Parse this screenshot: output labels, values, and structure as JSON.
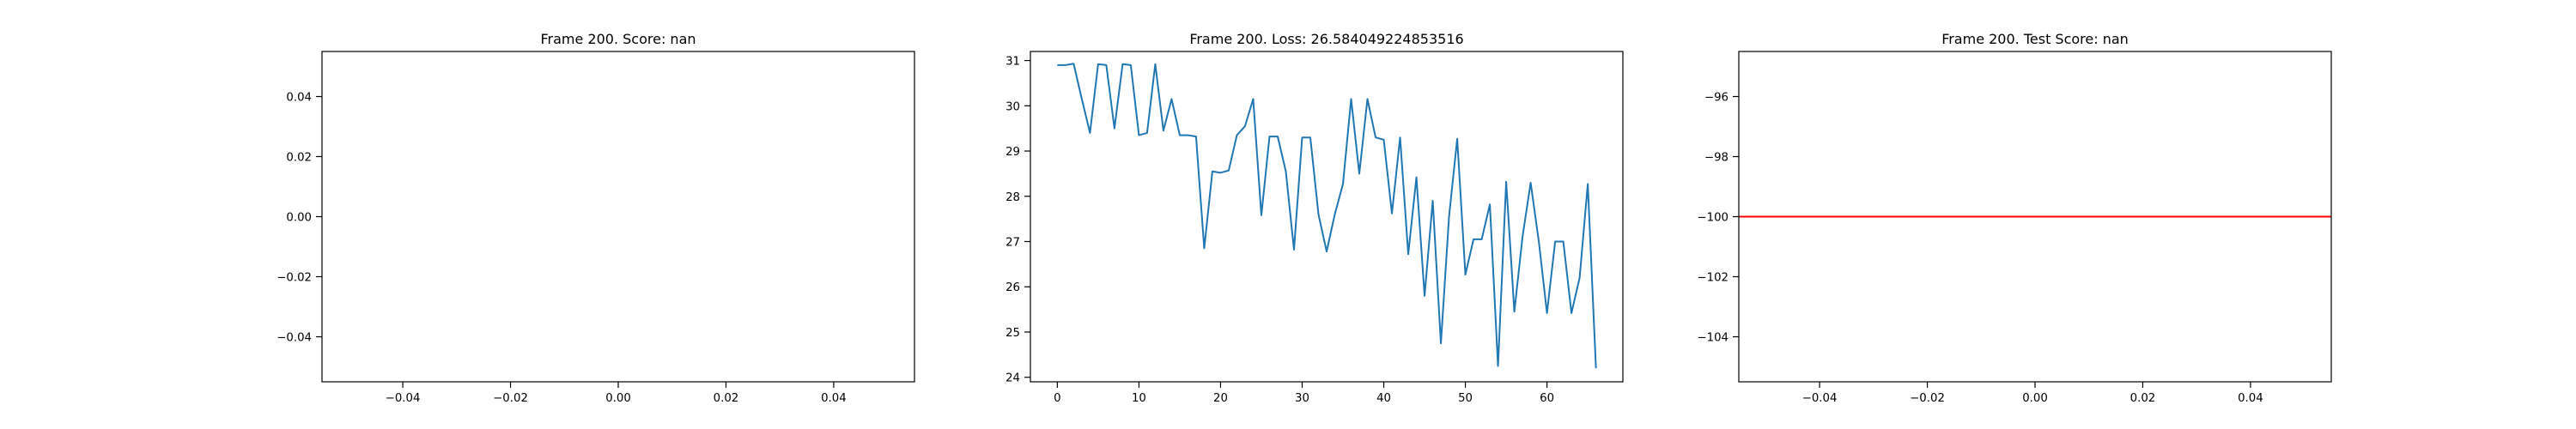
{
  "chart_data": [
    {
      "type": "line",
      "title": "Frame 200. Score: nan",
      "xlim": [
        -0.055,
        0.055
      ],
      "ylim": [
        -0.055,
        0.055
      ],
      "xticks": [
        -0.04,
        -0.02,
        0.0,
        0.02,
        0.04
      ],
      "xtick_labels": [
        "−0.04",
        "−0.02",
        "0.00",
        "0.02",
        "0.04"
      ],
      "yticks": [
        0.04,
        0.02,
        0.0,
        -0.02,
        -0.04
      ],
      "ytick_labels": [
        "0.04",
        "0.02",
        "0.00",
        "−0.02",
        "−0.04"
      ],
      "grid": false,
      "series": []
    },
    {
      "type": "line",
      "title": "Frame 200. Loss: 26.584049224853516",
      "xlim": [
        -3.3,
        69.3
      ],
      "ylim": [
        23.9,
        31.2
      ],
      "xticks": [
        0,
        10,
        20,
        30,
        40,
        50,
        60
      ],
      "xtick_labels": [
        "0",
        "10",
        "20",
        "30",
        "40",
        "50",
        "60"
      ],
      "yticks": [
        31,
        30,
        29,
        28,
        27,
        26,
        25,
        24
      ],
      "ytick_labels": [
        "31",
        "30",
        "29",
        "28",
        "27",
        "26",
        "25",
        "24"
      ],
      "grid": false,
      "series": [
        {
          "color": "#1f77b4",
          "x": [
            0,
            1,
            2,
            3,
            4,
            5,
            6,
            7,
            8,
            9,
            10,
            11,
            12,
            13,
            14,
            15,
            16,
            17,
            18,
            19,
            20,
            21,
            22,
            23,
            24,
            25,
            26,
            27,
            28,
            29,
            30,
            31,
            32,
            33,
            34,
            35,
            36,
            37,
            38,
            39,
            40,
            41,
            42,
            43,
            44,
            45,
            46,
            47,
            48,
            49,
            50,
            51,
            52,
            53,
            54,
            55,
            56,
            57,
            58,
            59,
            60,
            61,
            62,
            63,
            64,
            65,
            66
          ],
          "values": [
            30.9,
            30.9,
            30.93,
            30.15,
            29.4,
            30.92,
            30.9,
            29.5,
            30.92,
            30.9,
            29.35,
            29.4,
            30.92,
            29.45,
            30.15,
            29.35,
            29.35,
            29.32,
            26.85,
            28.55,
            28.52,
            28.57,
            29.35,
            29.55,
            30.15,
            27.58,
            29.32,
            29.32,
            28.55,
            26.82,
            29.3,
            29.3,
            27.6,
            26.78,
            27.6,
            28.27,
            30.15,
            28.5,
            30.15,
            29.3,
            29.25,
            27.62,
            29.3,
            26.72,
            28.42,
            25.8,
            27.9,
            24.75,
            27.55,
            29.27,
            26.27,
            27.05,
            27.05,
            27.82,
            24.25,
            28.32,
            25.45,
            27.1,
            28.3,
            27.0,
            25.42,
            27.0,
            27.0,
            25.42,
            26.2,
            28.27,
            24.2
          ]
        }
      ]
    },
    {
      "type": "line",
      "title": "Frame 200. Test Score: nan",
      "xlim": [
        -0.055,
        0.055
      ],
      "ylim": [
        -105.5,
        -94.5
      ],
      "xticks": [
        -0.04,
        -0.02,
        0.0,
        0.02,
        0.04
      ],
      "xtick_labels": [
        "−0.04",
        "−0.02",
        "0.00",
        "0.02",
        "0.04"
      ],
      "yticks": [
        -96,
        -98,
        -100,
        -102,
        -104
      ],
      "ytick_labels": [
        "−96",
        "−98",
        "−100",
        "−102",
        "−104"
      ],
      "grid": false,
      "hlines": [
        {
          "y": -100,
          "color": "#ff0000"
        }
      ],
      "series": []
    }
  ]
}
